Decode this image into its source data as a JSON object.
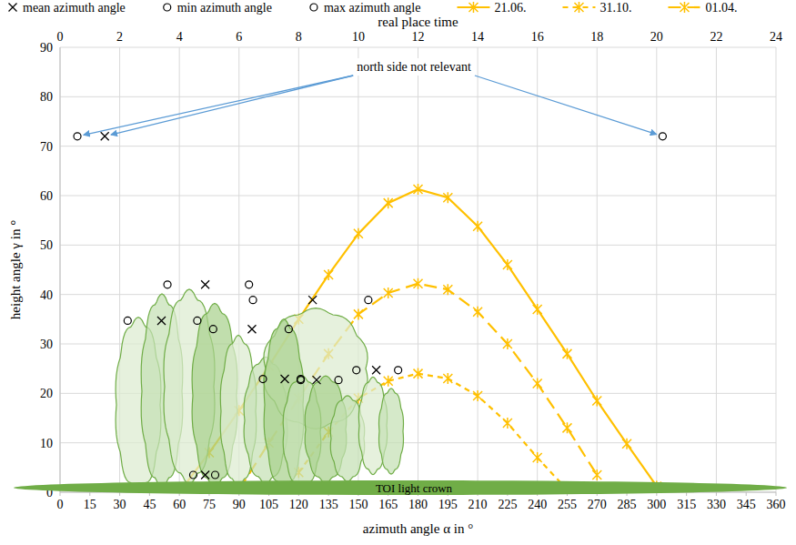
{
  "chart_data": {
    "type": "line",
    "xlabel": "azimuth angle α in °",
    "ylabel": "height angle γ in °",
    "x2label": "real place time",
    "xlim": [
      0,
      360
    ],
    "xticks": [
      0,
      15,
      30,
      45,
      60,
      75,
      90,
      105,
      120,
      135,
      150,
      165,
      180,
      195,
      210,
      225,
      240,
      255,
      270,
      285,
      300,
      315,
      330,
      345,
      360
    ],
    "ylim": [
      0,
      90
    ],
    "yticks": [
      0,
      10,
      20,
      30,
      40,
      50,
      60,
      70,
      80,
      90
    ],
    "x2lim": [
      0,
      24
    ],
    "x2ticks": [
      0,
      2,
      4,
      6,
      8,
      10,
      12,
      14,
      16,
      18,
      20,
      22,
      24
    ],
    "grid": true,
    "legend": "top",
    "annotations": [
      {
        "text": "north side not relevant"
      },
      {
        "text": "TOI light crown"
      }
    ],
    "series": [
      {
        "name": "mean azimuth angle",
        "type": "scatter",
        "color": "#000000",
        "marker": "x",
        "x": [
          22.5,
          51,
          73,
          96.5,
          127,
          113,
          129,
          159,
          73
        ],
        "values": [
          72,
          34.7,
          42,
          33,
          38.9,
          22.9,
          22.7,
          24.7,
          3.5
        ]
      },
      {
        "name": "min azimuth angle",
        "type": "scatter",
        "color": "#000000",
        "marker": "circle",
        "x": [
          8.7,
          34,
          54,
          77,
          97,
          102,
          121,
          149,
          67
        ],
        "values": [
          72,
          34.7,
          42,
          33,
          38.9,
          22.9,
          22.7,
          24.7,
          3.5
        ]
      },
      {
        "name": "max azimuth angle",
        "type": "scatter",
        "color": "#000000",
        "marker": "circle",
        "x": [
          303,
          69,
          95,
          115,
          155,
          121,
          140,
          170,
          78
        ],
        "values": [
          72,
          34.7,
          42,
          33,
          38.9,
          22.9,
          22.7,
          24.7,
          3.5
        ]
      },
      {
        "name": "21.06.",
        "type": "line",
        "color": "#ffc000",
        "marker": "asterisk",
        "line_style": "solid",
        "x": [
          60,
          75,
          90,
          105,
          120,
          135,
          150,
          165,
          180,
          195,
          210,
          225,
          240,
          255,
          270,
          285,
          300
        ],
        "values": [
          0,
          8,
          16.5,
          25.5,
          35,
          44,
          52.3,
          58.5,
          61.3,
          59.6,
          53.8,
          46,
          37,
          28,
          18.5,
          9.8,
          1.2
        ]
      },
      {
        "name": "31.10.",
        "type": "line",
        "color": "#ffc000",
        "marker": "asterisk",
        "line_style": "dashed",
        "x": [
          120,
          135,
          150,
          165,
          180,
          195,
          210,
          225,
          240,
          255
        ],
        "values": [
          4,
          12.2,
          19,
          22.5,
          24,
          23,
          19.5,
          14,
          7,
          0.5
        ]
      },
      {
        "name": "01.04.",
        "type": "line",
        "color": "#ffc000",
        "marker": "asterisk",
        "line_style": "long_dashed",
        "x": [
          90,
          105,
          120,
          135,
          150,
          165,
          180,
          195,
          210,
          225,
          240,
          255,
          270
        ],
        "values": [
          0.5,
          10,
          19,
          28,
          36,
          40.3,
          42.2,
          41,
          36.5,
          30,
          22,
          13,
          3.5
        ]
      }
    ]
  }
}
